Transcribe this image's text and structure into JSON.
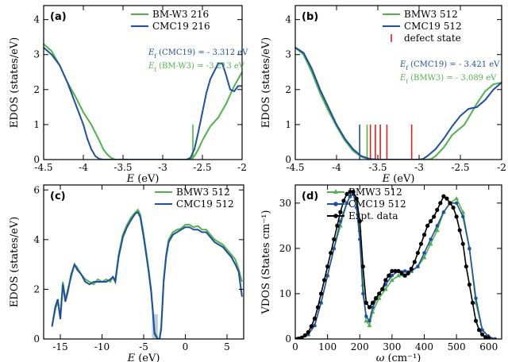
{
  "colors": {
    "green": "#4fb34a",
    "blue": "#1f4fa0",
    "red": "#e0201e",
    "black": "#000000",
    "shade": "#a9bfdc"
  },
  "chart_data": [
    {
      "panel": "(a)",
      "type": "line",
      "xlabel_pre": "E",
      "xlabel_post": " (eV)",
      "ylabel": "EDOS (states/eV)",
      "xlim": [
        -4.5,
        -2
      ],
      "ylim": [
        0,
        4.4
      ],
      "xticks": [
        "-4.5",
        "-4",
        "-3.5",
        "-3",
        "-2.5",
        "-2"
      ],
      "yticks": [
        "0",
        "1",
        "2",
        "3",
        "4"
      ],
      "legend_position": "top-right",
      "series": [
        {
          "name": "BM-W3 216",
          "color": "green",
          "x": [
            -4.5,
            -4.4,
            -4.3,
            -4.2,
            -4.1,
            -4.0,
            -3.9,
            -3.8,
            -3.75,
            -3.7,
            -3.65,
            -3.6,
            -3.5,
            -3.3,
            -3.0,
            -2.8,
            -2.7,
            -2.65,
            -2.6,
            -2.55,
            -2.5,
            -2.45,
            -2.4,
            -2.3,
            -2.2,
            -2.1,
            -2.0
          ],
          "y": [
            3.3,
            3.1,
            2.7,
            2.2,
            1.8,
            1.35,
            1.0,
            0.55,
            0.3,
            0.15,
            0.05,
            0,
            0,
            0,
            0,
            0,
            0,
            0.03,
            0.1,
            0.3,
            0.55,
            0.75,
            0.95,
            1.2,
            1.6,
            2.1,
            2.5
          ]
        },
        {
          "name": "CMC19 216",
          "color": "blue",
          "x": [
            -4.5,
            -4.4,
            -4.3,
            -4.2,
            -4.1,
            -4.0,
            -3.95,
            -3.9,
            -3.85,
            -3.8,
            -3.75,
            -3.7,
            -3.5,
            -3.0,
            -2.8,
            -2.7,
            -2.65,
            -2.6,
            -2.55,
            -2.5,
            -2.45,
            -2.4,
            -2.3,
            -2.25,
            -2.2,
            -2.15,
            -2.1,
            -2.05,
            -2.0
          ],
          "y": [
            3.2,
            3.0,
            2.7,
            2.2,
            1.6,
            1.0,
            0.6,
            0.3,
            0.1,
            0.02,
            0,
            0,
            0,
            0,
            0,
            0,
            0.05,
            0.3,
            0.8,
            1.35,
            1.9,
            2.3,
            2.75,
            2.75,
            2.4,
            2.0,
            1.95,
            2.1,
            2.1
          ]
        }
      ],
      "markers": [
        {
          "x": -2.62,
          "height": 1.0,
          "color": "green"
        }
      ],
      "annotations": [
        {
          "pre": "E",
          "sub": "f",
          "text": " (CMC19) = - 3.312 eV",
          "color": "blue"
        },
        {
          "pre": "E",
          "sub": "f",
          "text": " (BM-W3) = -3.213 eV",
          "color": "green"
        }
      ]
    },
    {
      "panel": "(b)",
      "type": "line",
      "xlabel_pre": "E",
      "xlabel_post": " (eV)",
      "ylabel": "EDOS (states/eV)",
      "xlim": [
        -4.5,
        -2
      ],
      "ylim": [
        0,
        4.4
      ],
      "xticks": [
        "-4.5",
        "-4",
        "-3.5",
        "-3",
        "-2.5",
        "-2"
      ],
      "yticks": [
        "0",
        "1",
        "2",
        "3",
        "4"
      ],
      "legend_position": "top-right",
      "series": [
        {
          "name": "BMW3 512",
          "color": "green",
          "x": [
            -4.5,
            -4.4,
            -4.3,
            -4.2,
            -4.1,
            -4.0,
            -3.9,
            -3.8,
            -3.7,
            -3.6,
            -3.5,
            -3.0,
            -2.9,
            -2.85,
            -2.8,
            -2.7,
            -2.6,
            -2.5,
            -2.45,
            -2.4,
            -2.3,
            -2.2,
            -2.1,
            -2.0
          ],
          "y": [
            3.2,
            3.0,
            2.5,
            1.9,
            1.4,
            0.95,
            0.55,
            0.25,
            0.08,
            0.01,
            0,
            0,
            0,
            0.02,
            0.1,
            0.35,
            0.7,
            0.9,
            1.0,
            1.2,
            1.6,
            1.95,
            2.15,
            2.2
          ]
        },
        {
          "name": "CMC19 512",
          "color": "blue",
          "x": [
            -4.5,
            -4.4,
            -4.3,
            -4.2,
            -4.1,
            -4.0,
            -3.9,
            -3.8,
            -3.7,
            -3.6,
            -3.5,
            -3.0,
            -2.95,
            -2.9,
            -2.8,
            -2.7,
            -2.6,
            -2.5,
            -2.4,
            -2.3,
            -2.2,
            -2.1,
            -2.0
          ],
          "y": [
            3.2,
            3.05,
            2.6,
            2.0,
            1.5,
            1.0,
            0.6,
            0.3,
            0.1,
            0.02,
            0,
            0,
            0.02,
            0.1,
            0.3,
            0.6,
            0.95,
            1.25,
            1.45,
            1.5,
            1.7,
            2.0,
            2.2
          ]
        }
      ],
      "markers": [
        {
          "x": -3.72,
          "height": 1.0,
          "color": "blue"
        },
        {
          "x": -3.63,
          "height": 1.0,
          "color": "green"
        },
        {
          "x": -3.59,
          "height": 1.0,
          "color": "red"
        },
        {
          "x": -3.53,
          "height": 1.0,
          "color": "red"
        },
        {
          "x": -3.47,
          "height": 1.0,
          "color": "red"
        },
        {
          "x": -3.39,
          "height": 1.0,
          "color": "red"
        },
        {
          "x": -3.09,
          "height": 1.0,
          "color": "red"
        }
      ],
      "legend_extra": {
        "label": "defect state",
        "color": "red"
      },
      "annotations": [
        {
          "pre": "E",
          "sub": "f",
          "text": " (CMC19) = - 3.421 eV",
          "color": "blue"
        },
        {
          "pre": "E",
          "sub": "f",
          "text": " (BMW3) = - 3.089 eV",
          "color": "green"
        }
      ]
    },
    {
      "panel": "(c)",
      "type": "line",
      "xlabel_pre": "E",
      "xlabel_post": " (eV)",
      "ylabel": "EDOS (states/eV)",
      "xlim": [
        -17,
        7
      ],
      "ylim": [
        0,
        6.2
      ],
      "xticks": [
        "-15",
        "-10",
        "-5",
        "0",
        "5"
      ],
      "xtick_values": [
        -15,
        -10,
        -5,
        0,
        5
      ],
      "yticks": [
        "0",
        "2",
        "4",
        "6"
      ],
      "ytick_values": [
        0,
        2,
        4,
        6
      ],
      "legend_position": "top-right",
      "shade": {
        "x0": -4.0,
        "x1": -3.3,
        "height": 1.0
      },
      "series": [
        {
          "name": "BMW3 512",
          "color": "green",
          "x": [
            -16,
            -15.6,
            -15.3,
            -15,
            -14.7,
            -14.4,
            -14.1,
            -13.7,
            -13.3,
            -13,
            -12.5,
            -12,
            -11.5,
            -11,
            -10.5,
            -10,
            -9.5,
            -9,
            -8.7,
            -8.4,
            -8,
            -7.5,
            -7,
            -6.5,
            -6,
            -5.7,
            -5.4,
            -5,
            -4.7,
            -4.4,
            -4.1,
            -3.9,
            -3.7,
            -3.3,
            -3.1,
            -2.9,
            -2.6,
            -2.3,
            -2,
            -1.5,
            -1,
            -0.5,
            0,
            0.5,
            1,
            1.5,
            2,
            2.5,
            3,
            3.5,
            4,
            4.5,
            5,
            5.5,
            6,
            6.4,
            6.8
          ],
          "y": [
            0.5,
            1.2,
            1.5,
            0.9,
            2.3,
            1.6,
            2.0,
            2.5,
            3.0,
            2.9,
            2.6,
            2.4,
            2.3,
            2.2,
            2.4,
            2.3,
            2.4,
            2.3,
            2.5,
            2.4,
            3.4,
            4.2,
            4.6,
            4.9,
            5.1,
            5.2,
            5.0,
            4.2,
            3.5,
            2.8,
            2.0,
            1.2,
            0.3,
            0,
            0,
            0.5,
            2.4,
            3.4,
            4.0,
            4.3,
            4.4,
            4.45,
            4.6,
            4.6,
            4.5,
            4.55,
            4.4,
            4.4,
            4.2,
            4.0,
            3.9,
            3.8,
            3.6,
            3.4,
            3.2,
            2.8,
            2.3
          ]
        },
        {
          "name": "CMC19 512",
          "color": "blue",
          "x": [
            -16,
            -15.6,
            -15.3,
            -15,
            -14.7,
            -14.4,
            -14.1,
            -13.7,
            -13.3,
            -13,
            -12.5,
            -12,
            -11.5,
            -11,
            -10.5,
            -10,
            -9.5,
            -9,
            -8.7,
            -8.4,
            -8,
            -7.5,
            -7,
            -6.5,
            -6,
            -5.7,
            -5.4,
            -5,
            -4.7,
            -4.4,
            -4.1,
            -3.9,
            -3.7,
            -3.3,
            -3.1,
            -2.9,
            -2.6,
            -2.3,
            -2,
            -1.5,
            -1,
            -0.5,
            0,
            0.5,
            1,
            1.5,
            2,
            2.5,
            3,
            3.5,
            4,
            4.5,
            5,
            5.5,
            6,
            6.4,
            6.8
          ],
          "y": [
            0.5,
            1.3,
            1.6,
            0.8,
            2.2,
            1.5,
            1.9,
            2.6,
            3.0,
            2.8,
            2.6,
            2.3,
            2.2,
            2.3,
            2.3,
            2.3,
            2.3,
            2.4,
            2.5,
            2.3,
            3.3,
            4.1,
            4.5,
            4.8,
            5.05,
            5.1,
            4.9,
            4.1,
            3.4,
            2.7,
            1.9,
            1.1,
            0.2,
            0,
            0,
            0.4,
            2.3,
            3.3,
            3.9,
            4.2,
            4.3,
            4.4,
            4.5,
            4.5,
            4.4,
            4.4,
            4.3,
            4.3,
            4.1,
            3.9,
            3.8,
            3.7,
            3.5,
            3.3,
            3.0,
            2.7,
            1.7
          ]
        }
      ]
    },
    {
      "panel": "(d)",
      "type": "line",
      "xlabel_pre": "ω",
      "xlabel_post": " (cm⁻¹)",
      "ylabel": "VDOS (States cm⁻¹)",
      "xlim": [
        0,
        640
      ],
      "ylim": [
        0,
        34
      ],
      "xticks": [
        "0",
        "100",
        "200",
        "300",
        "400",
        "500",
        "600"
      ],
      "xtick_values": [
        0,
        100,
        200,
        300,
        400,
        500,
        600
      ],
      "yticks": [
        "0",
        "10",
        "20",
        "30"
      ],
      "ytick_values": [
        0,
        10,
        20,
        30
      ],
      "legend_position": "top-left",
      "series": [
        {
          "name": "BMW3 512",
          "color": "green",
          "marker": "triangle",
          "x": [
            0,
            20,
            40,
            60,
            80,
            100,
            120,
            140,
            160,
            170,
            180,
            190,
            200,
            210,
            220,
            230,
            240,
            260,
            280,
            300,
            320,
            340,
            360,
            380,
            400,
            420,
            440,
            460,
            480,
            500,
            520,
            540,
            560,
            580,
            600,
            620
          ],
          "y": [
            0,
            0.2,
            1,
            3,
            8,
            14,
            20,
            25,
            30,
            31.5,
            32,
            30,
            24,
            12,
            4,
            3,
            6,
            9,
            11,
            13,
            14,
            14,
            15,
            16,
            18,
            21,
            24,
            28,
            30,
            31,
            28,
            20,
            8,
            2,
            0.5,
            0
          ]
        },
        {
          "name": "CMC19 512",
          "color": "blue",
          "marker": "circle",
          "x": [
            0,
            20,
            40,
            60,
            80,
            100,
            120,
            140,
            160,
            170,
            180,
            190,
            200,
            210,
            220,
            230,
            240,
            260,
            280,
            300,
            320,
            340,
            360,
            380,
            400,
            420,
            440,
            460,
            480,
            500,
            520,
            540,
            560,
            580,
            600,
            620
          ],
          "y": [
            0,
            0.2,
            1,
            3,
            8,
            14,
            20,
            26,
            30,
            31.5,
            32,
            29,
            22,
            10,
            5,
            4,
            7,
            10,
            12,
            14,
            15,
            15,
            15,
            16,
            19,
            22,
            25,
            28,
            30,
            30,
            27,
            20,
            9,
            2,
            0.5,
            0
          ]
        },
        {
          "name": "Expt. data",
          "color": "black",
          "marker": "circle",
          "x": [
            0,
            10,
            20,
            30,
            40,
            50,
            60,
            70,
            80,
            90,
            100,
            110,
            120,
            130,
            140,
            150,
            160,
            170,
            180,
            190,
            200,
            210,
            220,
            230,
            240,
            250,
            260,
            270,
            280,
            290,
            300,
            310,
            320,
            330,
            340,
            350,
            360,
            370,
            380,
            390,
            400,
            410,
            420,
            430,
            440,
            450,
            460,
            470,
            480,
            490,
            500,
            510,
            520,
            530,
            540,
            550,
            560,
            570,
            580,
            590,
            600
          ],
          "y": [
            0,
            0.1,
            0.3,
            0.8,
            1.5,
            2.8,
            4.5,
            7,
            10,
            13,
            16,
            19,
            22,
            25,
            28,
            30.5,
            32,
            32.5,
            32.5,
            31,
            26,
            16,
            8,
            7,
            8,
            9,
            10,
            11,
            13,
            14,
            15,
            15,
            15,
            14.5,
            14,
            14.5,
            15.5,
            17,
            19,
            21,
            23,
            25,
            26,
            27,
            28.5,
            30,
            31.5,
            31,
            30,
            29,
            27,
            24,
            21,
            16,
            12,
            8,
            4,
            2,
            1,
            0.4,
            0.1
          ]
        }
      ]
    }
  ]
}
